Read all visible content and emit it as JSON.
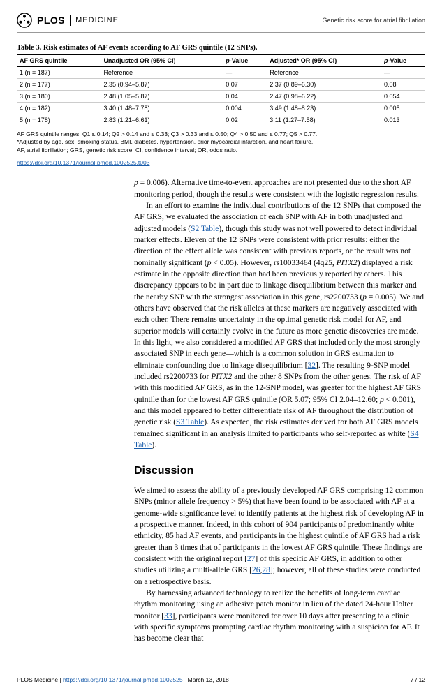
{
  "header": {
    "logo_text": "PLOS",
    "logo_sub": "MEDICINE",
    "right_text": "Genetic risk score for atrial fibrillation"
  },
  "table": {
    "title": "Table 3. Risk estimates of AF events according to AF GRS quintile (12 SNPs).",
    "columns": [
      "AF GRS quintile",
      "Unadjusted OR (95% CI)",
      "p-Value",
      "Adjusted* OR (95% CI)",
      "p-Value"
    ],
    "rows": [
      [
        "1 (n = 187)",
        "Reference",
        "—",
        "Reference",
        "—"
      ],
      [
        "2 (n = 177)",
        "2.35 (0.94–5.87)",
        "0.07",
        "2.37 (0.89–6.30)",
        "0.08"
      ],
      [
        "3 (n = 180)",
        "2.48 (1.05–5.87)",
        "0.04",
        "2.47 (0.98–6.22)",
        "0.054"
      ],
      [
        "4 (n = 182)",
        "3.40 (1.48–7.78)",
        "0.004",
        "3.49 (1.48–8.23)",
        "0.005"
      ],
      [
        "5 (n = 178)",
        "2.83 (1.21–6.61)",
        "0.02",
        "3.11 (1.27–7.58)",
        "0.013"
      ]
    ],
    "notes": [
      "AF GRS quintile ranges: Q1 ≤ 0.14; Q2 > 0.14 and ≤ 0.33; Q3 > 0.33 and ≤ 0.50; Q4 > 0.50 and ≤ 0.77; Q5 > 0.77.",
      "*Adjusted by age, sex, smoking status, BMI, diabetes, hypertension, prior myocardial infarction, and heart failure.",
      "AF, atrial fibrillation; GRS, genetic risk score; CI, confidence interval; OR, odds ratio."
    ],
    "doi": "https://doi.org/10.1371/journal.pmed.1002525.t003"
  },
  "body": {
    "p1_pre": "p",
    "p1": " = 0.006). Alternative time-to-event approaches are not presented due to the short AF monitoring period, though the results were consistent with the logistic regression results.",
    "p2a": "In an effort to examine the individual contributions of the 12 SNPs that composed the AF GRS, we evaluated the association of each SNP with AF in both unadjusted and adjusted models (",
    "p2_link1": "S2 Table",
    "p2b": "), though this study was not well powered to detect individual marker effects. Eleven of the 12 SNPs were consistent with prior results: either the direction of the effect allele was consistent with previous reports, or the result was not nominally significant (",
    "p2_ip": "p",
    "p2c": " < 0.05). However, rs10033464 (4q25, ",
    "p2_gene1": "PITX2",
    "p2d": ") displayed a risk estimate in the opposite direction than had been previously reported by others. This discrepancy appears to be in part due to linkage disequilibrium between this marker and the nearby SNP with the strongest association in this gene, rs2200733 (",
    "p2_ip2": "p",
    "p2e": " = 0.005). We and others have observed that the risk alleles at these markers are negatively associated with each other. There remains uncertainty in the optimal genetic risk model for AF, and superior models will certainly evolve in the future as more genetic discoveries are made. In this light, we also considered a modified AF GRS that included only the most strongly associated SNP in each gene—which is a common solution in GRS estimation to eliminate confounding due to linkage disequilibrium [",
    "p2_link2": "32",
    "p2f": "]. The resulting 9-SNP model included rs2200733 for ",
    "p2_gene2": "PITX2",
    "p2g": " and the other 8 SNPs from the other genes. The risk of AF with this modified AF GRS, as in the 12-SNP model, was greater for the highest AF GRS quintile than for the lowest AF GRS quintile (OR 5.07; 95% CI 2.04–12.60; ",
    "p2_ip3": "p",
    "p2h": " < 0.001), and this model appeared to better differentiate risk of AF throughout the distribution of genetic risk (",
    "p2_link3": "S3 Table",
    "p2i": "). As expected, the risk estimates derived for both AF GRS models remained significant in an analysis limited to participants who self-reported as white (",
    "p2_link4": "S4 Table",
    "p2j": ").",
    "discussion_h": "Discussion",
    "p3a": "We aimed to assess the ability of a previously developed AF GRS comprising 12 common SNPs (minor allele frequency > 5%) that have been found to be associated with AF at a genome-wide significance level to identify patients at the highest risk of developing AF in a prospective manner. Indeed, in this cohort of 904 participants of predominantly white ethnicity, 85 had AF events, and participants in the highest quintile of AF GRS had a risk greater than 3 times that of participants in the lowest AF GRS quintile. These findings are consistent with the original report [",
    "p3_link1": "27",
    "p3b": "] of this specific AF GRS, in addition to other studies utilizing a multi-allele GRS [",
    "p3_link2": "26",
    "p3_link2b": "28",
    "p3c": "]; however, all of these studies were conducted on a retrospective basis.",
    "p4a": "By harnessing advanced technology to realize the benefits of long-term cardiac rhythm monitoring using an adhesive patch monitor in lieu of the dated 24-hour Holter monitor [",
    "p4_link1": "33",
    "p4b": "], participants were monitored for over 10 days after presenting to a clinic with specific symptoms prompting cardiac rhythm monitoring with a suspicion for AF. It has become clear that"
  },
  "footer": {
    "left_pre": "PLOS Medicine | ",
    "left_link": "https://doi.org/10.1371/journal.pmed.1002525",
    "left_date": "March 13, 2018",
    "right": "7 / 12"
  }
}
